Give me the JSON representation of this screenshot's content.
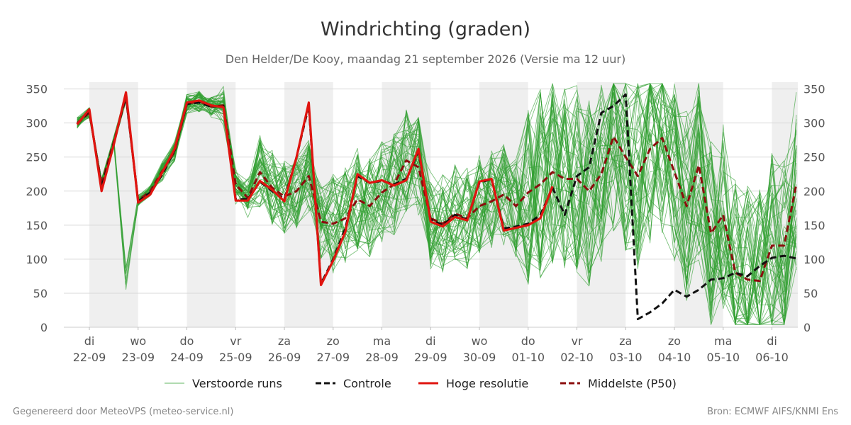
{
  "chart_data": {
    "type": "line",
    "title": "Windrichting (graden)",
    "subtitle": "Den Helder/De Kooy, maandag 21 september 2026 (Versie ma 12 uur)",
    "ylim": [
      0,
      360
    ],
    "yticks": [
      0,
      50,
      100,
      150,
      200,
      250,
      300,
      350
    ],
    "xlim": [
      -0.5,
      15.0
    ],
    "xticks": [
      {
        "x": 0,
        "day": "di",
        "date": "22-09"
      },
      {
        "x": 1,
        "day": "wo",
        "date": "23-09"
      },
      {
        "x": 2,
        "day": "do",
        "date": "24-09"
      },
      {
        "x": 3,
        "day": "vr",
        "date": "25-09"
      },
      {
        "x": 4,
        "day": "za",
        "date": "26-09"
      },
      {
        "x": 5,
        "day": "zo",
        "date": "27-09"
      },
      {
        "x": 6,
        "day": "ma",
        "date": "28-09"
      },
      {
        "x": 7,
        "day": "di",
        "date": "29-09"
      },
      {
        "x": 8,
        "day": "wo",
        "date": "30-09"
      },
      {
        "x": 9,
        "day": "do",
        "date": "01-10"
      },
      {
        "x": 10,
        "day": "vr",
        "date": "02-10"
      },
      {
        "x": 11,
        "day": "za",
        "date": "03-10"
      },
      {
        "x": 12,
        "day": "zo",
        "date": "04-10"
      },
      {
        "x": 13,
        "day": "ma",
        "date": "05-10"
      },
      {
        "x": 14,
        "day": "di",
        "date": "06-10"
      }
    ],
    "shaded_days": [
      [
        0,
        1
      ],
      [
        2,
        3
      ],
      [
        4,
        5
      ],
      [
        6,
        7
      ],
      [
        8,
        9
      ],
      [
        10,
        11
      ],
      [
        12,
        13
      ],
      [
        14,
        15
      ]
    ],
    "grid": true,
    "legend_position": "bottom",
    "ensemble_members": 50,
    "series": [
      {
        "name": "Controle",
        "style": "dashed",
        "color": "#111111",
        "x": [
          -0.25,
          0,
          0.25,
          0.5,
          0.75,
          1,
          1.25,
          1.5,
          1.75,
          2,
          2.25,
          2.5,
          2.75,
          3,
          3.25,
          3.5,
          3.75,
          4,
          4.25,
          4.5,
          4.75,
          5,
          5.25,
          5.5,
          5.75,
          6,
          6.25,
          6.5,
          6.75,
          7,
          7.25,
          7.5,
          7.75,
          8,
          8.25,
          8.5,
          8.75,
          9,
          9.25,
          9.5,
          9.75,
          10,
          10.25,
          10.5,
          10.75,
          11,
          11.25,
          11.5,
          11.75,
          12,
          12.25,
          12.5,
          12.75,
          13,
          13.25,
          13.5,
          13.75,
          14,
          14.25,
          14.5
        ],
        "values": [
          298,
          318,
          205,
          270,
          340,
          185,
          198,
          225,
          260,
          328,
          330,
          324,
          325,
          188,
          188,
          214,
          200,
          188,
          250,
          325,
          64,
          100,
          145,
          222,
          212,
          215,
          210,
          218,
          258,
          158,
          150,
          165,
          158,
          212,
          218,
          145,
          148,
          152,
          165,
          205,
          165,
          222,
          235,
          315,
          325,
          342,
          12,
          22,
          35,
          55,
          45,
          55,
          70,
          72,
          80,
          75,
          90,
          102,
          105,
          101
        ]
      },
      {
        "name": "Hoge resolutie",
        "style": "solid",
        "color": "#e0140f",
        "x": [
          -0.25,
          0,
          0.25,
          0.5,
          0.75,
          1,
          1.25,
          1.5,
          1.75,
          2,
          2.25,
          2.5,
          2.75,
          3,
          3.25,
          3.5,
          3.75,
          4,
          4.25,
          4.5,
          4.75,
          5,
          5.25,
          5.5,
          5.75,
          6,
          6.25,
          6.5,
          6.75,
          7,
          7.25,
          7.5,
          7.75,
          8,
          8.25,
          8.5,
          8.75,
          9,
          9.25,
          9.5
        ],
        "values": [
          298,
          320,
          200,
          268,
          345,
          183,
          195,
          228,
          262,
          330,
          333,
          326,
          323,
          186,
          186,
          215,
          202,
          185,
          250,
          330,
          62,
          98,
          140,
          225,
          212,
          216,
          208,
          216,
          262,
          155,
          148,
          162,
          157,
          214,
          218,
          142,
          146,
          150,
          160,
          207
        ]
      },
      {
        "name": "Middelste (P50)",
        "style": "dashed",
        "color": "#8b0d0d",
        "x": [
          -0.25,
          0,
          0.25,
          0.5,
          0.75,
          1,
          1.25,
          1.5,
          1.75,
          2,
          2.25,
          2.5,
          2.75,
          3,
          3.25,
          3.5,
          3.75,
          4,
          4.25,
          4.5,
          4.75,
          5,
          5.25,
          5.5,
          5.75,
          6,
          6.25,
          6.5,
          6.75,
          7,
          7.25,
          7.5,
          7.75,
          8,
          8.25,
          8.5,
          8.75,
          9,
          9.25,
          9.5,
          9.75,
          10,
          10.25,
          10.5,
          10.75,
          11,
          11.25,
          11.5,
          11.75,
          12,
          12.25,
          12.5,
          12.75,
          13,
          13.25,
          13.5,
          13.75,
          14,
          14.25,
          14.5
        ],
        "values": [
          300,
          315,
          210,
          272,
          338,
          186,
          200,
          230,
          258,
          328,
          332,
          324,
          326,
          210,
          190,
          228,
          205,
          192,
          200,
          222,
          155,
          152,
          160,
          188,
          178,
          198,
          210,
          245,
          235,
          160,
          152,
          167,
          160,
          178,
          185,
          195,
          178,
          198,
          210,
          228,
          218,
          218,
          200,
          225,
          280,
          250,
          222,
          262,
          278,
          228,
          178,
          238,
          138,
          165,
          80,
          70,
          68,
          120,
          120,
          210
        ]
      }
    ]
  },
  "legend": [
    {
      "label": "Verstoorde runs",
      "style": "thin",
      "color": "#3aa33a"
    },
    {
      "label": "Controle",
      "style": "dashed",
      "color": "#111111"
    },
    {
      "label": "Hoge resolutie",
      "style": "solid",
      "color": "#e0140f"
    },
    {
      "label": "Middelste (P50)",
      "style": "dashed",
      "color": "#8b0d0d"
    }
  ],
  "footer": {
    "left": "Gegenereerd door MeteoVPS (meteo-service.nl)",
    "right": "Bron: ECMWF AIFS/KNMI Ens"
  }
}
